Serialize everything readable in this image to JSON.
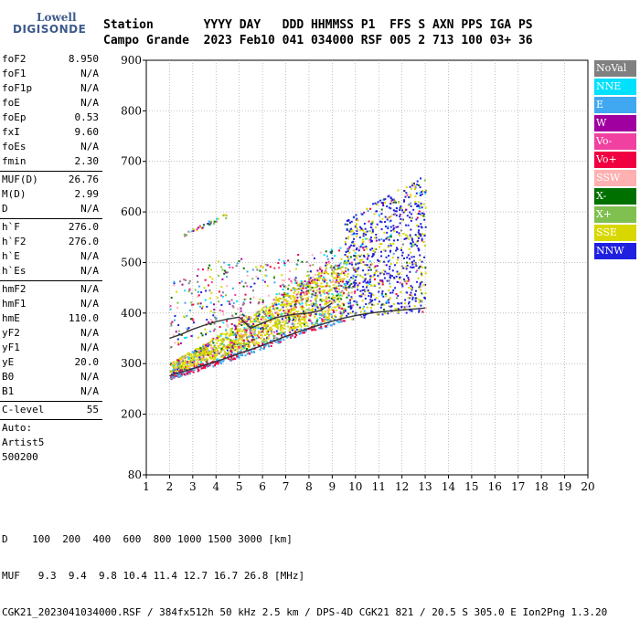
{
  "logo": {
    "line1": "Lowell",
    "line2": "DIGISONDE"
  },
  "header": {
    "row1": "Station       YYYY DAY   DDD HHMMSS P1  FFS S AXN PPS IGA PS",
    "row2": "Campo Grande  2023 Feb10 041 034000 RSF 005 2 713 100 03+ 36"
  },
  "sidebar": {
    "group1": [
      {
        "k": "foF2",
        "v": "8.950"
      },
      {
        "k": "foF1",
        "v": "N/A"
      },
      {
        "k": "foF1p",
        "v": "N/A"
      },
      {
        "k": "foE",
        "v": "N/A"
      },
      {
        "k": "foEp",
        "v": "0.53"
      },
      {
        "k": "fxI",
        "v": "9.60"
      },
      {
        "k": "foEs",
        "v": "N/A"
      },
      {
        "k": "fmin",
        "v": "2.30"
      }
    ],
    "group2": [
      {
        "k": "MUF(D)",
        "v": "26.76"
      },
      {
        "k": "M(D)",
        "v": "2.99"
      },
      {
        "k": "D",
        "v": "N/A"
      }
    ],
    "group3": [
      {
        "k": "h`F",
        "v": "276.0"
      },
      {
        "k": "h`F2",
        "v": "276.0"
      },
      {
        "k": "h`E",
        "v": "N/A"
      },
      {
        "k": "h`Es",
        "v": "N/A"
      }
    ],
    "group4": [
      {
        "k": "hmF2",
        "v": "N/A"
      },
      {
        "k": "hmF1",
        "v": "N/A"
      },
      {
        "k": "hmE",
        "v": "110.0"
      },
      {
        "k": "yF2",
        "v": "N/A"
      },
      {
        "k": "yF1",
        "v": "N/A"
      },
      {
        "k": "yE",
        "v": "20.0"
      },
      {
        "k": "B0",
        "v": "N/A"
      },
      {
        "k": "B1",
        "v": "N/A"
      }
    ],
    "group5": [
      {
        "k": "C-level",
        "v": "55"
      }
    ],
    "auto": [
      "Auto:",
      "Artist5",
      "500200"
    ]
  },
  "legend": [
    {
      "label": "NoVal",
      "color": "#808080"
    },
    {
      "label": "NNE",
      "color": "#00e0ff"
    },
    {
      "label": "E",
      "color": "#40a8f0"
    },
    {
      "label": "W",
      "color": "#a000a0"
    },
    {
      "label": "Vo-",
      "color": "#f040a0"
    },
    {
      "label": "Vo+",
      "color": "#f00040"
    },
    {
      "label": "SSW",
      "color": "#ffb0b0"
    },
    {
      "label": "X-",
      "color": "#007000"
    },
    {
      "label": "X+",
      "color": "#80c050"
    },
    {
      "label": "SSE",
      "color": "#d8d800"
    },
    {
      "label": "NNW",
      "color": "#2020e0"
    }
  ],
  "bottom": {
    "row1": "D    100  200  400  600  800 1000 1500 3000 [km]",
    "row2": "MUF   9.3  9.4  9.8 10.4 11.4 12.7 16.7 26.8 [MHz]",
    "row3": "CGK21_2023041034000.RSF / 384fx512h 50 kHz 2.5 km / DPS-4D CGK21 821 / 20.5 S 305.0 E Ion2Png 1.3.20"
  },
  "chart_data": {
    "type": "scatter",
    "title": "",
    "xlabel": "",
    "ylabel": "",
    "xlim": [
      1,
      20
    ],
    "ylim": [
      80,
      900
    ],
    "xticks": [
      1,
      2,
      3,
      4,
      5,
      6,
      7,
      8,
      9,
      10,
      11,
      12,
      13,
      14,
      15,
      16,
      17,
      18,
      19,
      20
    ],
    "yticks": [
      80,
      200,
      300,
      400,
      500,
      600,
      700,
      800,
      900
    ],
    "grid": true,
    "legend_placement": "right",
    "trace_f2_lower": {
      "x": [
        2.0,
        2.5,
        3.0,
        3.5,
        4.0,
        4.5,
        5.0,
        5.5,
        6.0,
        6.5,
        7.0,
        7.5,
        8.0,
        8.5,
        9.0,
        9.5,
        10.0,
        10.5,
        11.0,
        11.5,
        12.0,
        12.5,
        13.0
      ],
      "y": [
        276,
        283,
        290,
        297,
        304,
        312,
        320,
        328,
        336,
        345,
        354,
        362,
        370,
        377,
        384,
        390,
        395,
        399,
        402,
        404,
        406,
        408,
        410
      ]
    },
    "trace_x_upper": {
      "x": [
        2.0,
        2.5,
        3.0,
        3.5,
        4.0,
        4.5,
        5.0,
        5.5,
        6.0,
        6.5,
        7.0,
        7.5,
        8.0,
        8.5,
        9.0
      ],
      "y": [
        350,
        358,
        368,
        376,
        383,
        388,
        392,
        370,
        380,
        390,
        395,
        398,
        400,
        405,
        420
      ]
    },
    "trace_secondary": {
      "x": [
        2.5,
        3.0,
        3.5,
        4.0,
        4.5
      ],
      "y": [
        550,
        560,
        570,
        580,
        590
      ]
    }
  }
}
